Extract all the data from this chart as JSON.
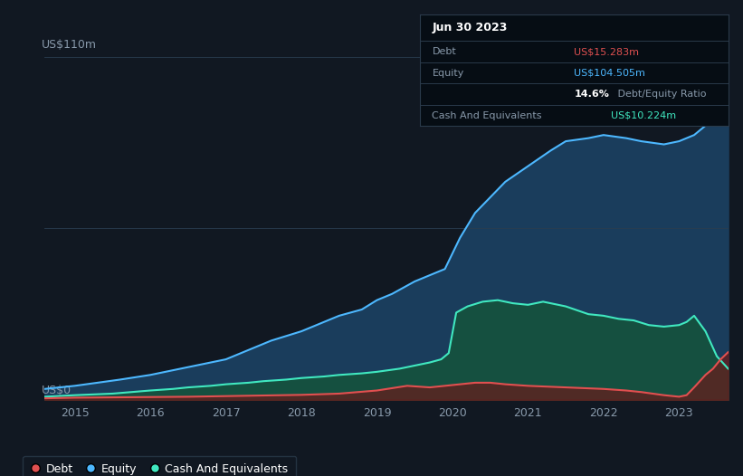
{
  "bg_color": "#111822",
  "plot_bg_color": "#111822",
  "title_box_date": "Jun 30 2023",
  "ylabel_top": "US$110m",
  "ylabel_bottom": "US$0",
  "x_ticks": [
    "2015",
    "2016",
    "2017",
    "2018",
    "2019",
    "2020",
    "2021",
    "2022",
    "2023"
  ],
  "legend_items": [
    {
      "label": "Debt",
      "color": "#e05050"
    },
    {
      "label": "Equity",
      "color": "#4db8ff"
    },
    {
      "label": "Cash And Equivalents",
      "color": "#40e8c0"
    }
  ],
  "equity_color": "#4db8ff",
  "debt_color": "#e05050",
  "cash_color": "#40e8c0",
  "equity_fill": "#1a3d5c",
  "cash_fill": "#155040",
  "debt_fill": "#6a1a1a",
  "ylim": [
    0,
    110
  ],
  "xlim": [
    2014.6,
    2023.65
  ],
  "equity_x": [
    2014.6,
    2015.0,
    2015.3,
    2015.6,
    2016.0,
    2016.3,
    2016.6,
    2017.0,
    2017.3,
    2017.6,
    2018.0,
    2018.3,
    2018.5,
    2018.8,
    2019.0,
    2019.2,
    2019.5,
    2019.7,
    2019.9,
    2020.1,
    2020.3,
    2020.5,
    2020.7,
    2021.0,
    2021.3,
    2021.5,
    2021.8,
    2022.0,
    2022.3,
    2022.5,
    2022.8,
    2023.0,
    2023.2,
    2023.45,
    2023.65
  ],
  "equity_y": [
    3.5,
    4.5,
    5.5,
    6.5,
    8,
    9.5,
    11,
    13,
    16,
    19,
    22,
    25,
    27,
    29,
    32,
    34,
    38,
    40,
    42,
    52,
    60,
    65,
    70,
    75,
    80,
    83,
    84,
    85,
    84,
    83,
    82,
    83,
    85,
    90,
    104
  ],
  "debt_x": [
    2014.6,
    2015.0,
    2015.5,
    2016.0,
    2016.5,
    2017.0,
    2017.5,
    2018.0,
    2018.5,
    2019.0,
    2019.4,
    2019.7,
    2019.9,
    2020.1,
    2020.3,
    2020.5,
    2020.7,
    2021.0,
    2021.5,
    2022.0,
    2022.3,
    2022.5,
    2022.8,
    2023.0,
    2023.1,
    2023.2,
    2023.35,
    2023.45,
    2023.55,
    2023.65
  ],
  "debt_y": [
    0.5,
    0.7,
    0.8,
    0.9,
    1.0,
    1.2,
    1.4,
    1.6,
    2.0,
    3.0,
    4.5,
    4.0,
    4.5,
    5.0,
    5.5,
    5.5,
    5.0,
    4.5,
    4.0,
    3.5,
    3.0,
    2.5,
    1.5,
    1.0,
    1.5,
    4.0,
    8.0,
    10.0,
    13.0,
    15.3
  ],
  "cash_x": [
    2014.6,
    2015.0,
    2015.5,
    2016.0,
    2016.3,
    2016.5,
    2016.8,
    2017.0,
    2017.3,
    2017.5,
    2017.8,
    2018.0,
    2018.3,
    2018.5,
    2018.8,
    2019.0,
    2019.3,
    2019.5,
    2019.7,
    2019.85,
    2019.95,
    2020.05,
    2020.2,
    2020.4,
    2020.6,
    2020.8,
    2021.0,
    2021.2,
    2021.5,
    2021.8,
    2022.0,
    2022.2,
    2022.4,
    2022.6,
    2022.8,
    2023.0,
    2023.1,
    2023.2,
    2023.35,
    2023.5,
    2023.65
  ],
  "cash_y": [
    1.0,
    1.5,
    2.0,
    3.0,
    3.5,
    4.0,
    4.5,
    5.0,
    5.5,
    6.0,
    6.5,
    7.0,
    7.5,
    8.0,
    8.5,
    9.0,
    10.0,
    11.0,
    12.0,
    13.0,
    15.0,
    28.0,
    30.0,
    31.5,
    32.0,
    31.0,
    30.5,
    31.5,
    30.0,
    27.5,
    27.0,
    26.0,
    25.5,
    24.0,
    23.5,
    24.0,
    25.0,
    27.0,
    22.0,
    14.0,
    10.0
  ]
}
